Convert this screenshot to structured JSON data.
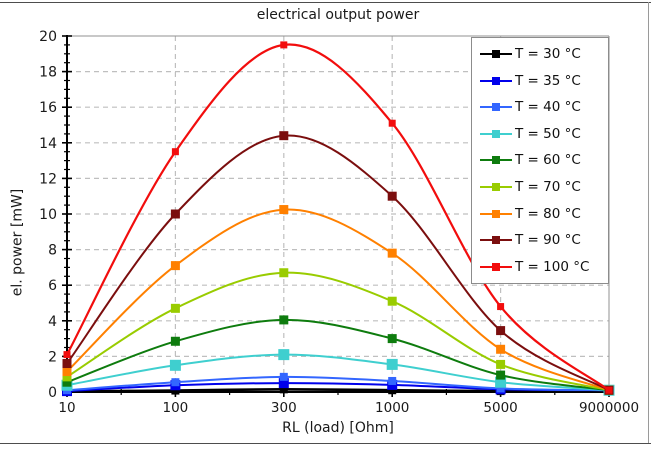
{
  "chart_data": {
    "type": "line",
    "title": "electrical output power",
    "xlabel": "RL (load) [Ohm]",
    "ylabel": "el. power [mW]",
    "x_axis_type": "categorical",
    "categories": [
      "10",
      "100",
      "300",
      "1000",
      "5000",
      "9000000"
    ],
    "ylim": [
      0,
      20
    ],
    "ytick_step": 2,
    "y_minor_step": 0.5,
    "grid": true,
    "grid_style": "dashed",
    "legend_position": "top-right",
    "series": [
      {
        "name": "T = 30 °C",
        "color": "#000000",
        "marker_size": 8,
        "line_width": 2.6,
        "values": [
          0.03,
          0.08,
          0.15,
          0.1,
          0.05,
          0.1
        ]
      },
      {
        "name": "T = 35 °C",
        "color": "#0000EB",
        "marker_size": 10,
        "line_width": 2,
        "values": [
          0.05,
          0.38,
          0.5,
          0.4,
          0.15,
          0.1
        ]
      },
      {
        "name": "T = 40 °C",
        "color": "#3366FF",
        "marker_size": 8,
        "line_width": 2,
        "values": [
          0.1,
          0.55,
          0.85,
          0.62,
          0.2,
          0.1
        ]
      },
      {
        "name": "T = 50 °C",
        "color": "#3FCFCF",
        "marker_size": 11,
        "line_width": 2,
        "values": [
          0.38,
          1.5,
          2.1,
          1.55,
          0.55,
          0.1
        ]
      },
      {
        "name": "T = 60 °C",
        "color": "#0E7C0E",
        "marker_size": 9,
        "line_width": 2,
        "values": [
          0.55,
          2.85,
          4.05,
          3.0,
          0.95,
          0.1
        ]
      },
      {
        "name": "T = 70 °C",
        "color": "#99CC00",
        "marker_size": 9,
        "line_width": 2,
        "values": [
          0.85,
          4.7,
          6.7,
          5.1,
          1.55,
          0.1
        ]
      },
      {
        "name": "T = 80 °C",
        "color": "#FF8000",
        "marker_size": 9,
        "line_width": 2,
        "values": [
          1.15,
          7.1,
          10.25,
          7.8,
          2.4,
          0.1
        ]
      },
      {
        "name": "T = 90 °C",
        "color": "#7B0E0E",
        "marker_size": 9,
        "line_width": 2,
        "values": [
          1.6,
          10.0,
          14.4,
          11.0,
          3.45,
          0.1
        ]
      },
      {
        "name": "T = 100 °C",
        "color": "#F20D0D",
        "marker_size": 7,
        "line_width": 2.2,
        "values": [
          2.1,
          13.5,
          19.5,
          15.1,
          4.8,
          0.1
        ]
      }
    ],
    "axis_colors": {
      "axis": "#000000",
      "secondary_frame": "#909090",
      "grid": "#bfbfbf"
    }
  }
}
